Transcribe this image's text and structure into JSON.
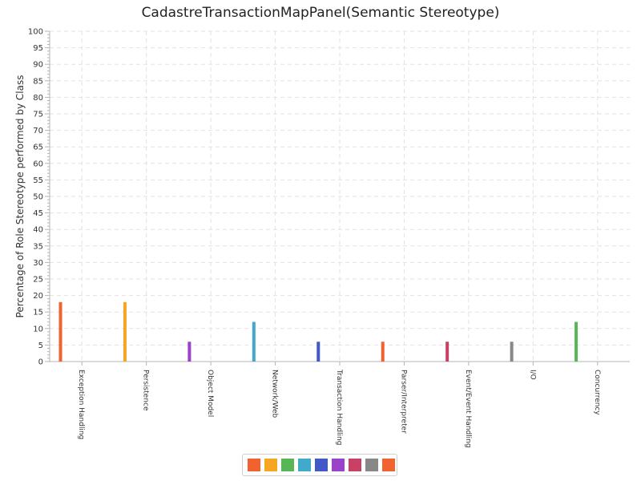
{
  "chart_data": {
    "type": "bar",
    "title": "CadastreTransactionMapPanel(Semantic Stereotype)",
    "xlabel": "",
    "ylabel": "Percentage of Role Stereotype performed by Class",
    "ylim": [
      0,
      100
    ],
    "ytick_step": 5,
    "grid": true,
    "legend_placement": "bottom-center",
    "categories": [
      "Exception Handling",
      "Persistence",
      "Object Model",
      "Network/Web",
      "Transaction Handling",
      "Parser/Interpreter",
      "Event/Event Handling",
      "I/O",
      "Concurrency"
    ],
    "values": [
      18,
      18,
      6,
      12,
      6,
      6,
      6,
      6,
      12
    ],
    "colors": [
      "#f0622f",
      "#f5a623",
      "#57b757",
      "#41a9c9",
      "#4258c9",
      "#9a42c8",
      "#c84164",
      "#888888",
      "#f0622f"
    ],
    "bar_colors": [
      "#f0622f",
      "#f5a623",
      "#9a42c8",
      "#41a9c9",
      "#4258c9",
      "#f0622f",
      "#c84164",
      "#888888",
      "#57b757"
    ]
  }
}
